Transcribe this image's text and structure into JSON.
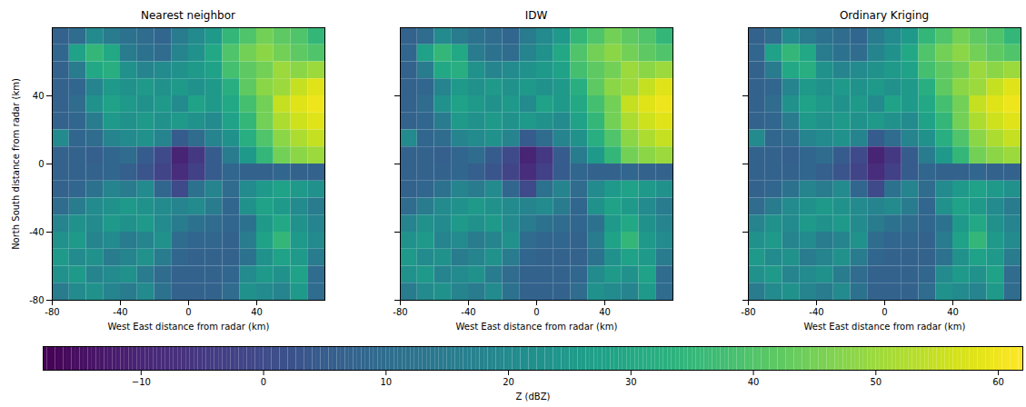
{
  "chart_data": [
    {
      "type": "heatmap",
      "title": "Nearest neighbor",
      "x_label": "West East distance from radar (km)",
      "y_label": "North South distance from radar (km)",
      "xlim": [
        -80,
        80
      ],
      "ylim": [
        -80,
        80
      ],
      "xticks": [
        -80,
        -40,
        0,
        40
      ],
      "yticks": [
        -80,
        -40,
        0,
        40
      ],
      "x": [
        -75,
        -65,
        -55,
        -45,
        -35,
        -25,
        -15,
        -5,
        5,
        15,
        25,
        35,
        45,
        55,
        65,
        75
      ],
      "y": [
        75,
        65,
        55,
        45,
        35,
        25,
        15,
        5,
        -5,
        -15,
        -25,
        -35,
        -45,
        -55,
        -65,
        -75
      ],
      "z": [
        [
          7,
          10,
          20,
          15,
          12,
          10,
          8,
          15,
          20,
          25,
          35,
          40,
          45,
          42,
          40,
          35
        ],
        [
          8,
          28,
          35,
          30,
          15,
          12,
          10,
          18,
          22,
          30,
          40,
          45,
          48,
          45,
          42,
          40
        ],
        [
          7,
          15,
          30,
          32,
          22,
          18,
          20,
          22,
          25,
          28,
          38,
          42,
          45,
          50,
          48,
          50
        ],
        [
          7,
          8,
          18,
          25,
          22,
          25,
          22,
          25,
          22,
          25,
          32,
          42,
          48,
          50,
          55,
          58
        ],
        [
          7,
          10,
          22,
          28,
          25,
          22,
          25,
          20,
          28,
          25,
          30,
          38,
          45,
          55,
          58,
          60
        ],
        [
          7,
          8,
          15,
          25,
          22,
          25,
          22,
          25,
          22,
          20,
          28,
          35,
          45,
          52,
          56,
          58
        ],
        [
          20,
          8,
          10,
          18,
          20,
          22,
          18,
          5,
          10,
          18,
          22,
          32,
          40,
          48,
          52,
          55
        ],
        [
          7,
          7,
          6,
          8,
          10,
          5,
          0,
          -10,
          -5,
          5,
          15,
          25,
          35,
          45,
          48,
          50
        ],
        [
          7,
          7,
          7,
          8,
          6,
          3,
          -2,
          -8,
          -3,
          5,
          8,
          7,
          7,
          8,
          7,
          7
        ],
        [
          7,
          8,
          12,
          18,
          15,
          20,
          8,
          0,
          12,
          18,
          10,
          20,
          25,
          28,
          25,
          22
        ],
        [
          10,
          15,
          20,
          22,
          25,
          22,
          20,
          18,
          20,
          15,
          8,
          22,
          28,
          25,
          20,
          15
        ],
        [
          18,
          22,
          20,
          25,
          22,
          25,
          20,
          15,
          12,
          10,
          8,
          12,
          25,
          30,
          22,
          18
        ],
        [
          22,
          25,
          18,
          20,
          15,
          18,
          22,
          10,
          8,
          8,
          7,
          15,
          28,
          35,
          25,
          20
        ],
        [
          25,
          20,
          22,
          15,
          18,
          22,
          15,
          8,
          7,
          7,
          7,
          12,
          22,
          28,
          25,
          15
        ],
        [
          22,
          25,
          18,
          20,
          22,
          15,
          10,
          7,
          7,
          7,
          8,
          20,
          25,
          22,
          28,
          10
        ],
        [
          15,
          20,
          22,
          18,
          15,
          20,
          12,
          7,
          7,
          7,
          10,
          22,
          20,
          18,
          25,
          10
        ]
      ]
    },
    {
      "type": "heatmap",
      "title": "IDW",
      "tick_labels": "x",
      "x_label": "West East distance from radar (km)",
      "xlim": [
        -80,
        80
      ],
      "ylim": [
        -80,
        80
      ],
      "xticks": [
        -80,
        -40,
        0,
        40
      ],
      "yticks": [
        -80,
        -40,
        0,
        40
      ],
      "x": [
        -75,
        -65,
        -55,
        -45,
        -35,
        -25,
        -15,
        -5,
        5,
        15,
        25,
        35,
        45,
        55,
        65,
        75
      ],
      "y": [
        75,
        65,
        55,
        45,
        35,
        25,
        15,
        5,
        -5,
        -15,
        -25,
        -35,
        -45,
        -55,
        -65,
        -75
      ],
      "z": [
        [
          7,
          10,
          20,
          15,
          12,
          10,
          8,
          15,
          20,
          25,
          35,
          40,
          45,
          42,
          40,
          35
        ],
        [
          8,
          28,
          35,
          30,
          15,
          12,
          10,
          18,
          22,
          30,
          40,
          45,
          48,
          45,
          42,
          40
        ],
        [
          7,
          15,
          30,
          32,
          22,
          18,
          20,
          22,
          25,
          28,
          38,
          42,
          45,
          50,
          48,
          50
        ],
        [
          7,
          8,
          18,
          25,
          22,
          25,
          22,
          25,
          22,
          25,
          32,
          42,
          48,
          50,
          55,
          58
        ],
        [
          7,
          10,
          22,
          28,
          25,
          22,
          25,
          20,
          28,
          25,
          30,
          38,
          45,
          55,
          58,
          60
        ],
        [
          7,
          8,
          15,
          25,
          22,
          25,
          22,
          25,
          22,
          20,
          28,
          35,
          45,
          52,
          56,
          58
        ],
        [
          20,
          8,
          10,
          18,
          20,
          22,
          18,
          5,
          10,
          18,
          22,
          32,
          40,
          48,
          52,
          55
        ],
        [
          7,
          7,
          6,
          8,
          10,
          5,
          0,
          -10,
          -5,
          5,
          15,
          25,
          35,
          45,
          48,
          50
        ],
        [
          7,
          7,
          7,
          8,
          6,
          3,
          -2,
          -8,
          -3,
          5,
          8,
          7,
          7,
          8,
          7,
          7
        ],
        [
          7,
          8,
          12,
          18,
          15,
          20,
          8,
          0,
          12,
          18,
          10,
          20,
          25,
          28,
          25,
          22
        ],
        [
          10,
          15,
          20,
          22,
          25,
          22,
          20,
          18,
          20,
          15,
          8,
          22,
          28,
          25,
          20,
          15
        ],
        [
          18,
          22,
          20,
          25,
          22,
          25,
          20,
          15,
          12,
          10,
          8,
          12,
          25,
          30,
          22,
          18
        ],
        [
          22,
          25,
          18,
          20,
          15,
          18,
          22,
          10,
          8,
          8,
          7,
          15,
          28,
          35,
          25,
          20
        ],
        [
          25,
          20,
          22,
          15,
          18,
          22,
          15,
          8,
          7,
          7,
          7,
          12,
          22,
          28,
          25,
          15
        ],
        [
          22,
          25,
          18,
          20,
          22,
          15,
          10,
          7,
          7,
          7,
          8,
          20,
          25,
          22,
          28,
          10
        ],
        [
          15,
          20,
          22,
          18,
          15,
          20,
          12,
          7,
          7,
          7,
          10,
          22,
          20,
          18,
          25,
          10
        ]
      ]
    },
    {
      "type": "heatmap",
      "title": "Ordinary Kriging",
      "tick_labels": "x",
      "x_label": "West East distance from radar (km)",
      "xlim": [
        -80,
        80
      ],
      "ylim": [
        -80,
        80
      ],
      "xticks": [
        -80,
        -40,
        0,
        40
      ],
      "yticks": [
        -80,
        -40,
        0,
        40
      ],
      "x": [
        -75,
        -65,
        -55,
        -45,
        -35,
        -25,
        -15,
        -5,
        5,
        15,
        25,
        35,
        45,
        55,
        65,
        75
      ],
      "y": [
        75,
        65,
        55,
        45,
        35,
        25,
        15,
        5,
        -5,
        -15,
        -25,
        -35,
        -45,
        -55,
        -65,
        -75
      ],
      "z": [
        [
          7,
          10,
          20,
          15,
          12,
          10,
          8,
          15,
          20,
          25,
          35,
          40,
          45,
          42,
          40,
          35
        ],
        [
          8,
          28,
          35,
          30,
          15,
          12,
          10,
          18,
          22,
          30,
          40,
          45,
          48,
          45,
          42,
          40
        ],
        [
          7,
          15,
          30,
          32,
          22,
          18,
          20,
          22,
          25,
          28,
          38,
          42,
          45,
          50,
          48,
          50
        ],
        [
          7,
          8,
          18,
          25,
          22,
          25,
          22,
          25,
          22,
          25,
          32,
          42,
          48,
          50,
          55,
          58
        ],
        [
          7,
          10,
          22,
          28,
          25,
          22,
          25,
          20,
          28,
          25,
          30,
          38,
          45,
          55,
          58,
          60
        ],
        [
          7,
          8,
          15,
          25,
          22,
          25,
          22,
          25,
          22,
          20,
          28,
          35,
          45,
          52,
          56,
          58
        ],
        [
          20,
          8,
          10,
          18,
          20,
          22,
          18,
          5,
          10,
          18,
          22,
          32,
          40,
          48,
          52,
          55
        ],
        [
          7,
          7,
          6,
          8,
          10,
          5,
          0,
          -10,
          -5,
          5,
          15,
          25,
          35,
          45,
          48,
          50
        ],
        [
          7,
          7,
          7,
          8,
          6,
          3,
          -2,
          -8,
          -3,
          5,
          8,
          7,
          7,
          8,
          7,
          7
        ],
        [
          7,
          8,
          12,
          18,
          15,
          20,
          8,
          0,
          12,
          18,
          10,
          20,
          25,
          28,
          25,
          22
        ],
        [
          10,
          15,
          20,
          22,
          25,
          22,
          20,
          18,
          20,
          15,
          8,
          22,
          28,
          25,
          20,
          15
        ],
        [
          18,
          22,
          20,
          25,
          22,
          25,
          20,
          15,
          12,
          10,
          8,
          12,
          25,
          30,
          22,
          18
        ],
        [
          22,
          25,
          18,
          20,
          15,
          18,
          22,
          10,
          8,
          8,
          7,
          15,
          28,
          35,
          25,
          20
        ],
        [
          25,
          20,
          22,
          15,
          18,
          22,
          15,
          8,
          7,
          7,
          7,
          12,
          22,
          28,
          25,
          15
        ],
        [
          22,
          25,
          18,
          20,
          22,
          15,
          10,
          7,
          7,
          7,
          8,
          20,
          25,
          22,
          28,
          10
        ],
        [
          15,
          20,
          22,
          18,
          15,
          20,
          12,
          7,
          7,
          7,
          10,
          22,
          20,
          18,
          25,
          10
        ]
      ]
    }
  ],
  "colorbar": {
    "label": "Z (dBZ)",
    "color": "viridis",
    "lim": [
      -18,
      62
    ],
    "ticks": [
      {
        "value": -10,
        "label": "−10"
      },
      0,
      10,
      20,
      30,
      40,
      50,
      60
    ]
  }
}
